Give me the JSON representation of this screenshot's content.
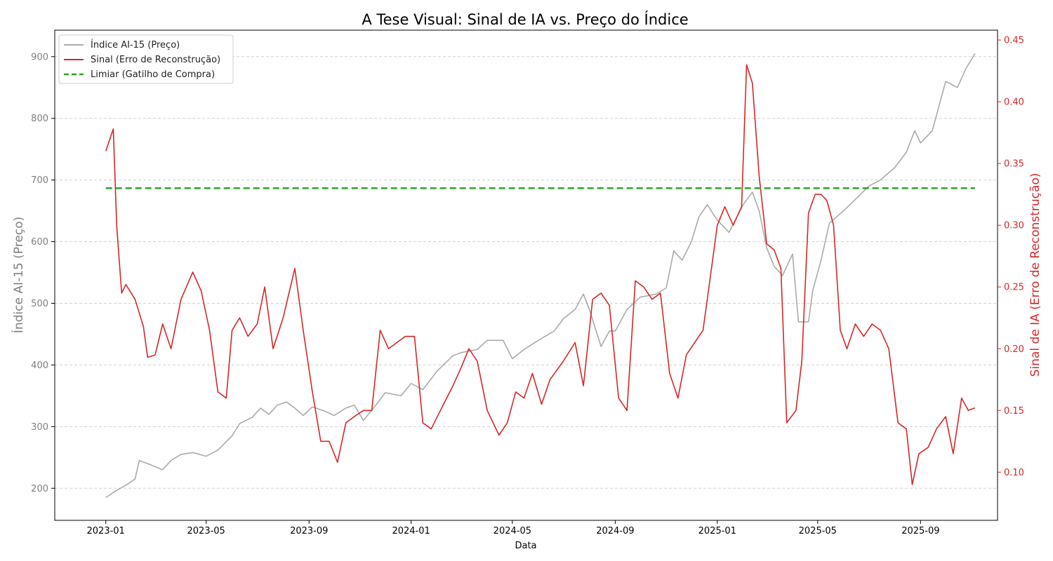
{
  "colors": {
    "price": "#aaaaaa",
    "signal": "#d62728",
    "threshold": "#2ca02c",
    "left_axis_text": "#7f7f7f",
    "right_axis_text": "#d62728",
    "grid": "#d0d0d0"
  },
  "chart_data": {
    "type": "line",
    "title": "A Tese Visual: Sinal de IA vs. Preço do Índice",
    "xlabel": "Data",
    "ylabel_left": "Índice AI-15 (Preço)",
    "ylabel_right": "Sinal de IA (Erro de Reconstrução)",
    "x_ticks": [
      "2023-01",
      "2023-05",
      "2023-09",
      "2024-01",
      "2024-05",
      "2024-09",
      "2025-01",
      "2025-05",
      "2025-09"
    ],
    "x_range": [
      "2022-11-01",
      "2025-12-02"
    ],
    "y_left_ticks": [
      200,
      300,
      400,
      500,
      600,
      700,
      800,
      900
    ],
    "y_left_range": [
      148,
      943
    ],
    "y_right_ticks": [
      "0.10",
      "0.15",
      "0.20",
      "0.25",
      "0.30",
      "0.35",
      "0.40",
      "0.45"
    ],
    "y_right_range": [
      0.061,
      0.458
    ],
    "grid": "horizontal dashed",
    "legend_position": "top-left",
    "legend": [
      {
        "label": "Índice AI-15 (Preço)",
        "style": "solid",
        "color": "#aaaaaa"
      },
      {
        "label": "Sinal (Erro de Reconstrução)",
        "style": "solid",
        "color": "#d62728"
      },
      {
        "label": "Limiar (Gatilho de Compra)",
        "style": "dashed",
        "color": "#2ca02c"
      }
    ],
    "series": [
      {
        "name": "Índice AI-15 (Preço)",
        "axis": "left",
        "points": [
          [
            "2023-01-01",
            185
          ],
          [
            "2023-01-12",
            195
          ],
          [
            "2023-01-25",
            205
          ],
          [
            "2023-02-05",
            215
          ],
          [
            "2023-02-10",
            245
          ],
          [
            "2023-02-20",
            240
          ],
          [
            "2023-03-01",
            235
          ],
          [
            "2023-03-10",
            230
          ],
          [
            "2023-03-20",
            245
          ],
          [
            "2023-04-01",
            255
          ],
          [
            "2023-04-15",
            258
          ],
          [
            "2023-05-01",
            252
          ],
          [
            "2023-05-15",
            262
          ],
          [
            "2023-06-01",
            285
          ],
          [
            "2023-06-10",
            305
          ],
          [
            "2023-06-25",
            315
          ],
          [
            "2023-07-05",
            330
          ],
          [
            "2023-07-15",
            320
          ],
          [
            "2023-07-25",
            335
          ],
          [
            "2023-08-05",
            340
          ],
          [
            "2023-08-15",
            330
          ],
          [
            "2023-08-25",
            318
          ],
          [
            "2023-09-05",
            332
          ],
          [
            "2023-09-20",
            325
          ],
          [
            "2023-10-01",
            318
          ],
          [
            "2023-10-15",
            330
          ],
          [
            "2023-10-25",
            335
          ],
          [
            "2023-11-05",
            310
          ],
          [
            "2023-11-20",
            335
          ],
          [
            "2023-12-01",
            355
          ],
          [
            "2023-12-20",
            350
          ],
          [
            "2024-01-01",
            370
          ],
          [
            "2024-01-15",
            360
          ],
          [
            "2024-02-01",
            390
          ],
          [
            "2024-02-20",
            415
          ],
          [
            "2024-03-01",
            420
          ],
          [
            "2024-03-20",
            425
          ],
          [
            "2024-04-01",
            440
          ],
          [
            "2024-04-20",
            440
          ],
          [
            "2024-05-01",
            410
          ],
          [
            "2024-05-15",
            425
          ],
          [
            "2024-06-01",
            440
          ],
          [
            "2024-06-20",
            455
          ],
          [
            "2024-07-01",
            475
          ],
          [
            "2024-07-15",
            490
          ],
          [
            "2024-07-25",
            515
          ],
          [
            "2024-08-01",
            490
          ],
          [
            "2024-08-15",
            430
          ],
          [
            "2024-08-25",
            455
          ],
          [
            "2024-09-01",
            455
          ],
          [
            "2024-09-15",
            490
          ],
          [
            "2024-10-01",
            510
          ],
          [
            "2024-10-20",
            515
          ],
          [
            "2024-11-01",
            525
          ],
          [
            "2024-11-10",
            585
          ],
          [
            "2024-11-20",
            570
          ],
          [
            "2024-12-01",
            600
          ],
          [
            "2024-12-10",
            640
          ],
          [
            "2024-12-20",
            660
          ],
          [
            "2025-01-01",
            635
          ],
          [
            "2025-01-15",
            615
          ],
          [
            "2025-02-01",
            660
          ],
          [
            "2025-02-12",
            680
          ],
          [
            "2025-02-20",
            650
          ],
          [
            "2025-03-01",
            590
          ],
          [
            "2025-03-10",
            560
          ],
          [
            "2025-03-20",
            545
          ],
          [
            "2025-04-01",
            580
          ],
          [
            "2025-04-08",
            470
          ],
          [
            "2025-04-20",
            470
          ],
          [
            "2025-04-25",
            520
          ],
          [
            "2025-05-05",
            570
          ],
          [
            "2025-05-15",
            630
          ],
          [
            "2025-06-01",
            650
          ],
          [
            "2025-06-20",
            675
          ],
          [
            "2025-07-01",
            690
          ],
          [
            "2025-07-15",
            700
          ],
          [
            "2025-08-01",
            720
          ],
          [
            "2025-08-15",
            745
          ],
          [
            "2025-08-25",
            780
          ],
          [
            "2025-09-01",
            760
          ],
          [
            "2025-09-15",
            780
          ],
          [
            "2025-10-01",
            860
          ],
          [
            "2025-10-15",
            850
          ],
          [
            "2025-10-25",
            880
          ],
          [
            "2025-11-05",
            905
          ]
        ]
      },
      {
        "name": "Sinal (Erro de Reconstrução)",
        "axis": "right",
        "points": [
          [
            "2023-01-01",
            0.36
          ],
          [
            "2023-01-10",
            0.378
          ],
          [
            "2023-01-14",
            0.3
          ],
          [
            "2023-01-20",
            0.245
          ],
          [
            "2023-01-25",
            0.252
          ],
          [
            "2023-02-05",
            0.24
          ],
          [
            "2023-02-15",
            0.218
          ],
          [
            "2023-02-20",
            0.193
          ],
          [
            "2023-03-01",
            0.195
          ],
          [
            "2023-03-10",
            0.22
          ],
          [
            "2023-03-20",
            0.2
          ],
          [
            "2023-04-01",
            0.24
          ],
          [
            "2023-04-15",
            0.262
          ],
          [
            "2023-04-25",
            0.247
          ],
          [
            "2023-05-05",
            0.215
          ],
          [
            "2023-05-15",
            0.165
          ],
          [
            "2023-05-25",
            0.16
          ],
          [
            "2023-06-01",
            0.215
          ],
          [
            "2023-06-10",
            0.225
          ],
          [
            "2023-06-20",
            0.21
          ],
          [
            "2023-07-01",
            0.22
          ],
          [
            "2023-07-10",
            0.25
          ],
          [
            "2023-07-20",
            0.2
          ],
          [
            "2023-08-01",
            0.225
          ],
          [
            "2023-08-15",
            0.265
          ],
          [
            "2023-08-25",
            0.215
          ],
          [
            "2023-09-05",
            0.165
          ],
          [
            "2023-09-15",
            0.125
          ],
          [
            "2023-09-25",
            0.125
          ],
          [
            "2023-10-05",
            0.108
          ],
          [
            "2023-10-15",
            0.14
          ],
          [
            "2023-10-25",
            0.145
          ],
          [
            "2023-11-05",
            0.15
          ],
          [
            "2023-11-15",
            0.15
          ],
          [
            "2023-11-25",
            0.215
          ],
          [
            "2023-12-05",
            0.2
          ],
          [
            "2023-12-15",
            0.205
          ],
          [
            "2023-12-25",
            0.21
          ],
          [
            "2024-01-05",
            0.21
          ],
          [
            "2024-01-15",
            0.14
          ],
          [
            "2024-01-25",
            0.135
          ],
          [
            "2024-02-05",
            0.15
          ],
          [
            "2024-02-20",
            0.17
          ],
          [
            "2024-03-01",
            0.185
          ],
          [
            "2024-03-10",
            0.2
          ],
          [
            "2024-03-20",
            0.19
          ],
          [
            "2024-04-01",
            0.15
          ],
          [
            "2024-04-15",
            0.13
          ],
          [
            "2024-04-25",
            0.14
          ],
          [
            "2024-05-05",
            0.165
          ],
          [
            "2024-05-15",
            0.16
          ],
          [
            "2024-05-25",
            0.18
          ],
          [
            "2024-06-05",
            0.155
          ],
          [
            "2024-06-15",
            0.175
          ],
          [
            "2024-07-01",
            0.19
          ],
          [
            "2024-07-15",
            0.205
          ],
          [
            "2024-07-25",
            0.17
          ],
          [
            "2024-08-05",
            0.24
          ],
          [
            "2024-08-15",
            0.245
          ],
          [
            "2024-08-25",
            0.235
          ],
          [
            "2024-09-05",
            0.16
          ],
          [
            "2024-09-15",
            0.15
          ],
          [
            "2024-09-25",
            0.255
          ],
          [
            "2024-10-05",
            0.25
          ],
          [
            "2024-10-15",
            0.24
          ],
          [
            "2024-10-25",
            0.245
          ],
          [
            "2024-11-05",
            0.18
          ],
          [
            "2024-11-15",
            0.16
          ],
          [
            "2024-11-25",
            0.195
          ],
          [
            "2024-12-05",
            0.205
          ],
          [
            "2024-12-15",
            0.215
          ],
          [
            "2024-12-25",
            0.265
          ],
          [
            "2025-01-01",
            0.3
          ],
          [
            "2025-01-10",
            0.315
          ],
          [
            "2025-01-20",
            0.3
          ],
          [
            "2025-01-30",
            0.315
          ],
          [
            "2025-02-05",
            0.43
          ],
          [
            "2025-02-12",
            0.415
          ],
          [
            "2025-02-20",
            0.34
          ],
          [
            "2025-03-01",
            0.285
          ],
          [
            "2025-03-10",
            0.28
          ],
          [
            "2025-03-18",
            0.265
          ],
          [
            "2025-03-25",
            0.14
          ],
          [
            "2025-04-05",
            0.15
          ],
          [
            "2025-04-12",
            0.19
          ],
          [
            "2025-04-20",
            0.31
          ],
          [
            "2025-04-28",
            0.325
          ],
          [
            "2025-05-05",
            0.325
          ],
          [
            "2025-05-12",
            0.32
          ],
          [
            "2025-05-20",
            0.3
          ],
          [
            "2025-05-28",
            0.215
          ],
          [
            "2025-06-05",
            0.2
          ],
          [
            "2025-06-15",
            0.22
          ],
          [
            "2025-06-25",
            0.21
          ],
          [
            "2025-07-05",
            0.22
          ],
          [
            "2025-07-15",
            0.215
          ],
          [
            "2025-07-25",
            0.2
          ],
          [
            "2025-08-05",
            0.14
          ],
          [
            "2025-08-15",
            0.135
          ],
          [
            "2025-08-22",
            0.09
          ],
          [
            "2025-08-30",
            0.115
          ],
          [
            "2025-09-10",
            0.12
          ],
          [
            "2025-09-20",
            0.135
          ],
          [
            "2025-10-01",
            0.145
          ],
          [
            "2025-10-10",
            0.115
          ],
          [
            "2025-10-20",
            0.16
          ],
          [
            "2025-10-28",
            0.15
          ],
          [
            "2025-11-05",
            0.152
          ]
        ]
      },
      {
        "name": "Limiar (Gatilho de Compra)",
        "axis": "right",
        "style": "dashed",
        "points": [
          [
            "2023-01-01",
            0.33
          ],
          [
            "2025-11-05",
            0.33
          ]
        ]
      }
    ]
  }
}
